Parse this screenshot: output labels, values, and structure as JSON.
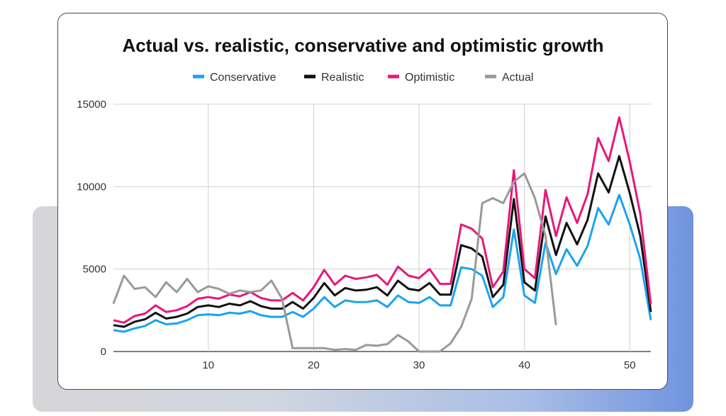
{
  "chart_data": {
    "type": "line",
    "title": "Actual vs. realistic, conservative and optimistic growth",
    "xlabel": "",
    "ylabel": "",
    "xlim": [
      1,
      52
    ],
    "ylim": [
      0,
      15000
    ],
    "y_ticks": [
      "0",
      "5000",
      "10000",
      "15000"
    ],
    "x_ticks": [
      "10",
      "20",
      "30",
      "40",
      "50"
    ],
    "legend_position": "top",
    "grid": true,
    "x": [
      1,
      2,
      3,
      4,
      5,
      6,
      7,
      8,
      9,
      10,
      11,
      12,
      13,
      14,
      15,
      16,
      17,
      18,
      19,
      20,
      21,
      22,
      23,
      24,
      25,
      26,
      27,
      28,
      29,
      30,
      31,
      32,
      33,
      34,
      35,
      36,
      37,
      38,
      39,
      40,
      41,
      42,
      43,
      44,
      45,
      46,
      47,
      48,
      49,
      50,
      51,
      52
    ],
    "series": [
      {
        "name": "Conservative",
        "color": "#1aa3f0",
        "values": [
          1300,
          1200,
          1400,
          1550,
          1900,
          1650,
          1700,
          1900,
          2200,
          2250,
          2200,
          2350,
          2300,
          2450,
          2200,
          2100,
          2100,
          2400,
          2100,
          2600,
          3300,
          2700,
          3100,
          3000,
          3000,
          3100,
          2700,
          3400,
          3000,
          2950,
          3300,
          2800,
          2800,
          5100,
          5000,
          4600,
          2700,
          3300,
          7400,
          3400,
          2950,
          6600,
          4700,
          6200,
          5200,
          6400,
          8700,
          7700,
          9500,
          7700,
          5600,
          1900
        ]
      },
      {
        "name": "Realistic",
        "color": "#111111",
        "values": [
          1600,
          1500,
          1800,
          1950,
          2350,
          2000,
          2100,
          2300,
          2700,
          2800,
          2700,
          2900,
          2800,
          3050,
          2750,
          2600,
          2600,
          3000,
          2600,
          3250,
          4150,
          3400,
          3850,
          3700,
          3750,
          3900,
          3400,
          4300,
          3800,
          3700,
          4150,
          3450,
          3450,
          6450,
          6250,
          5750,
          3300,
          4050,
          9250,
          4200,
          3700,
          8200,
          5850,
          7800,
          6500,
          8000,
          10800,
          9650,
          11850,
          9600,
          7000,
          2400
        ]
      },
      {
        "name": "Optimistic",
        "color": "#e8177a",
        "values": [
          1900,
          1750,
          2150,
          2300,
          2800,
          2400,
          2500,
          2750,
          3200,
          3300,
          3200,
          3450,
          3350,
          3600,
          3250,
          3100,
          3100,
          3550,
          3100,
          3900,
          4950,
          4050,
          4600,
          4400,
          4500,
          4650,
          4050,
          5150,
          4600,
          4450,
          5000,
          4100,
          4100,
          7700,
          7450,
          6850,
          3900,
          4850,
          11000,
          5000,
          4450,
          9800,
          7000,
          9350,
          7800,
          9550,
          12950,
          11550,
          14200,
          11500,
          8350,
          2850
        ]
      },
      {
        "name": "Actual",
        "color": "#999999",
        "values": [
          2900,
          4600,
          3800,
          3900,
          3300,
          4200,
          3600,
          4400,
          3600,
          3950,
          3800,
          3500,
          3700,
          3600,
          3700,
          4300,
          3200,
          200,
          200,
          200,
          200,
          100,
          150,
          100,
          400,
          350,
          450,
          1000,
          600,
          0,
          0,
          0,
          500,
          1500,
          3200,
          9000,
          9300,
          9000,
          10300,
          10800,
          9300,
          7000,
          1600,
          null,
          null,
          null,
          null,
          null,
          null,
          null,
          null,
          null
        ]
      }
    ]
  }
}
